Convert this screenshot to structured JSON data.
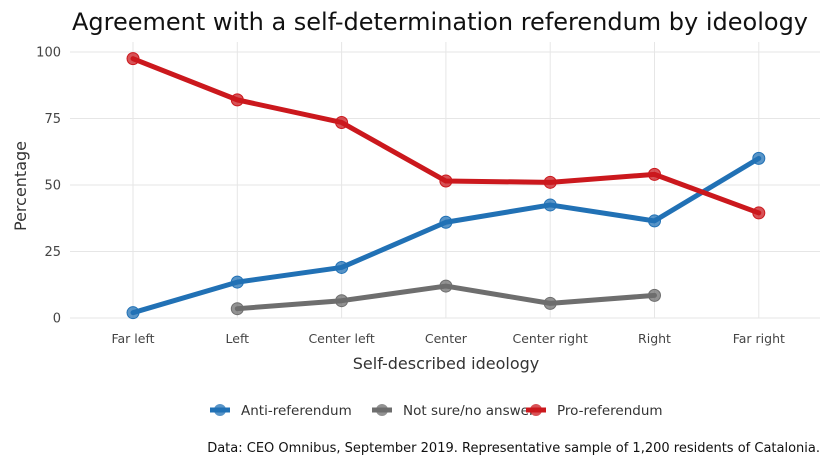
{
  "chart_data": {
    "type": "line",
    "title": "Agreement with a self-determination referendum by ideology",
    "xlabel": "Self-described ideology",
    "ylabel": "Percentage",
    "categories": [
      "Far left",
      "Left",
      "Center left",
      "Center",
      "Center right",
      "Right",
      "Far right"
    ],
    "ylim": [
      0,
      100
    ],
    "yticks": [
      0,
      25,
      50,
      75,
      100
    ],
    "grid": true,
    "legend_position": "bottom",
    "series": [
      {
        "name": "Anti-referendum",
        "color": "#2171b5",
        "values": [
          2,
          13.5,
          19,
          36,
          42.5,
          36.5,
          60
        ]
      },
      {
        "name": "Not sure/no answer",
        "color": "#6e6e6e",
        "values": [
          null,
          3.5,
          6.5,
          12,
          5.5,
          8.5,
          null
        ]
      },
      {
        "name": "Pro-referendum",
        "color": "#cb181d",
        "values": [
          97.5,
          82,
          73.5,
          51.5,
          51,
          54,
          39.5
        ]
      }
    ],
    "caption": "Data: CEO Omnibus, September 2019. Representative sample of 1,200 residents of Catalonia."
  }
}
